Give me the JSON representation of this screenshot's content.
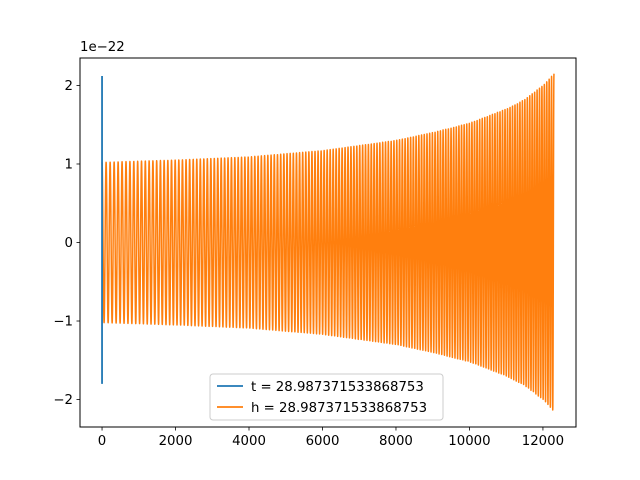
{
  "chart_data": {
    "type": "line",
    "title": "",
    "xlabel": "",
    "ylabel": "",
    "y_offset_label": "1e−22",
    "xlim": [
      -600,
      12900
    ],
    "ylim": [
      -2.35,
      2.35
    ],
    "x_ticks": [
      {
        "value": 0,
        "label": "0"
      },
      {
        "value": 2000,
        "label": "2000"
      },
      {
        "value": 4000,
        "label": "4000"
      },
      {
        "value": 6000,
        "label": "6000"
      },
      {
        "value": 8000,
        "label": "8000"
      },
      {
        "value": 10000,
        "label": "10000"
      },
      {
        "value": 12000,
        "label": "12000"
      }
    ],
    "y_ticks": [
      {
        "value": -2,
        "label": "−2"
      },
      {
        "value": -1,
        "label": "−1"
      },
      {
        "value": 0,
        "label": "0"
      },
      {
        "value": 1,
        "label": "1"
      },
      {
        "value": 2,
        "label": "2"
      }
    ],
    "grid": false,
    "legend_position": "bottom-center",
    "series": [
      {
        "name": "t = 28.987371533868753",
        "color": "#1f77b4",
        "x": [
          0,
          0,
          0,
          0
        ],
        "values": [
          -1.0,
          2.12,
          -1.8,
          1.0
        ]
      },
      {
        "name": "h = 28.987371533868753",
        "color": "#ff7f0e",
        "style": "oscillating chirp",
        "x_start": 0,
        "x_end": 12300,
        "cycles": 150,
        "amplitude_envelope": {
          "x": [
            0,
            2000,
            4000,
            6000,
            8000,
            9000,
            10000,
            11000,
            11500,
            12000,
            12300
          ],
          "values": [
            1.02,
            1.05,
            1.09,
            1.17,
            1.3,
            1.4,
            1.52,
            1.7,
            1.82,
            2.0,
            2.15
          ]
        }
      }
    ]
  }
}
